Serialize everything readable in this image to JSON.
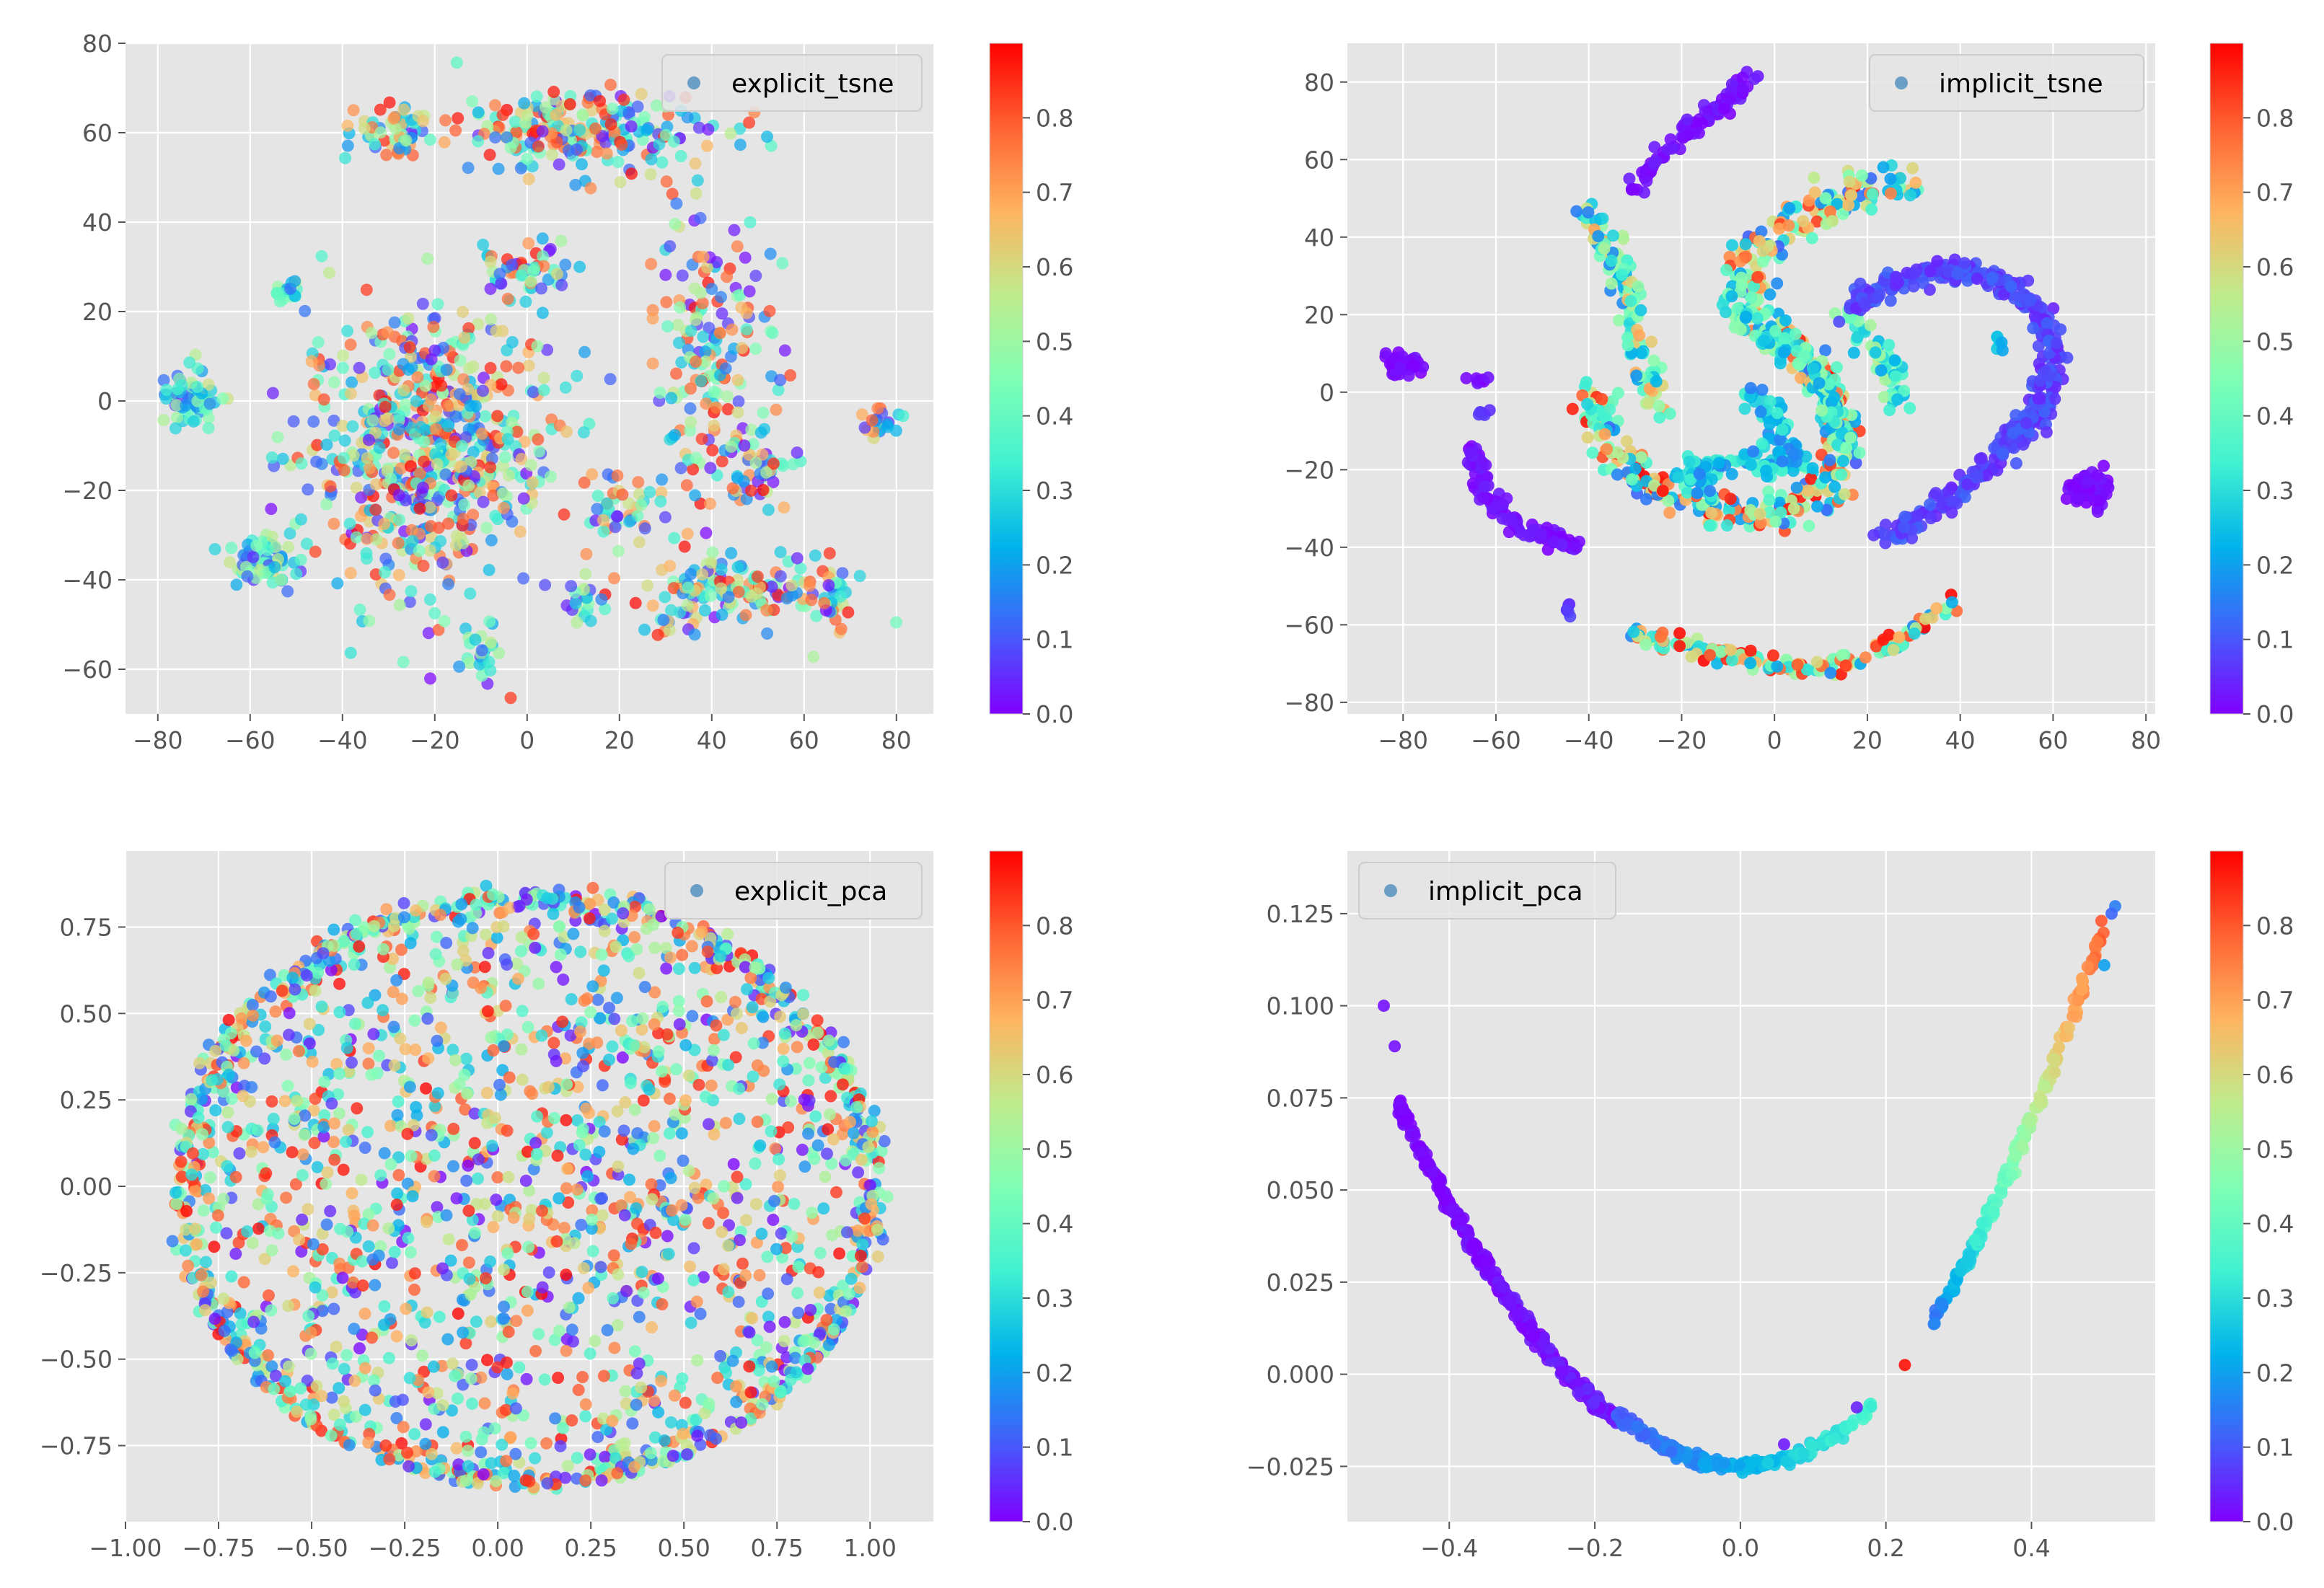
{
  "figure": {
    "colormap": "rainbow",
    "colormap_stops": [
      "#8000ff",
      "#4062fa",
      "#01b3eb",
      "#41f2d0",
      "#80ffb4",
      "#c0eb8c",
      "#ffb360",
      "#ff6232",
      "#ff0000"
    ],
    "axes_facecolor": "#e5e5e5",
    "grid_color": "#ffffff",
    "legend_marker_color": "#6a9ec4"
  },
  "chart_data": [
    {
      "id": "explicit_tsne",
      "type": "scatter",
      "title": "",
      "legend": {
        "label": "explicit_tsne",
        "position": "upper right"
      },
      "xlim": [
        -87,
        88
      ],
      "ylim": [
        -70,
        80
      ],
      "xticks": [
        -80,
        -60,
        -40,
        -20,
        0,
        20,
        40,
        60,
        80
      ],
      "xtick_labels": [
        "−80",
        "−60",
        "−40",
        "−20",
        "0",
        "20",
        "40",
        "60",
        "80"
      ],
      "yticks": [
        -60,
        -40,
        -20,
        0,
        20,
        40,
        60,
        80
      ],
      "ytick_labels": [
        "−60",
        "−40",
        "−20",
        "0",
        "20",
        "40",
        "60",
        "80"
      ],
      "colorbar": {
        "range": [
          0,
          0.9
        ],
        "ticks": [
          0.0,
          0.1,
          0.2,
          0.3,
          0.4,
          0.5,
          0.6,
          0.7,
          0.8
        ],
        "tick_labels": [
          "0.0",
          "0.1",
          "0.2",
          "0.3",
          "0.4",
          "0.5",
          "0.6",
          "0.7",
          "0.8"
        ]
      },
      "point_size": 0.77,
      "point_alpha": 0.72,
      "clusters": [
        {
          "cx": -73,
          "cy": 0,
          "rx": 6,
          "ry": 6,
          "n": 70,
          "cmin": 0.05,
          "cmax": 0.6
        },
        {
          "cx": -57,
          "cy": -36,
          "rx": 6,
          "ry": 6,
          "n": 70,
          "cmin": 0.05,
          "cmax": 0.6
        },
        {
          "cx": -52,
          "cy": 25,
          "rx": 3,
          "ry": 3,
          "n": 18,
          "cmin": 0.05,
          "cmax": 0.6
        },
        {
          "cx": 76,
          "cy": -5,
          "rx": 4,
          "ry": 3,
          "n": 24,
          "cmin": 0.05,
          "cmax": 0.85
        },
        {
          "cx": -22,
          "cy": -10,
          "rx": 25,
          "ry": 28,
          "n": 650,
          "cmin": 0,
          "cmax": 0.9
        },
        {
          "cx": 12,
          "cy": 60,
          "rx": 25,
          "ry": 8,
          "n": 220,
          "cmin": 0,
          "cmax": 0.9
        },
        {
          "cx": -30,
          "cy": 60,
          "rx": 8,
          "ry": 6,
          "n": 55,
          "cmin": 0,
          "cmax": 0.9
        },
        {
          "cx": 40,
          "cy": 10,
          "rx": 12,
          "ry": 30,
          "n": 180,
          "cmin": 0,
          "cmax": 0.9
        },
        {
          "cx": 45,
          "cy": -42,
          "rx": 20,
          "ry": 6,
          "n": 130,
          "cmin": 0,
          "cmax": 0.9
        },
        {
          "cx": 0,
          "cy": 30,
          "rx": 10,
          "ry": 6,
          "n": 50,
          "cmin": 0,
          "cmax": 0.9
        },
        {
          "cx": -10,
          "cy": -57,
          "rx": 3,
          "ry": 5,
          "n": 25,
          "cmin": 0,
          "cmax": 0.6
        },
        {
          "cx": 12,
          "cy": -45,
          "rx": 4,
          "ry": 5,
          "n": 20,
          "cmin": 0,
          "cmax": 0.6
        },
        {
          "cx": 50,
          "cy": -15,
          "rx": 8,
          "ry": 8,
          "n": 50,
          "cmin": 0,
          "cmax": 0.9
        },
        {
          "cx": 67,
          "cy": -45,
          "rx": 4,
          "ry": 8,
          "n": 30,
          "cmin": 0,
          "cmax": 0.9
        },
        {
          "cx": 20,
          "cy": -25,
          "rx": 8,
          "ry": 8,
          "n": 40,
          "cmin": 0,
          "cmax": 0.9
        },
        {
          "cx": 30,
          "cy": -50,
          "rx": 4,
          "ry": 3,
          "n": 10,
          "cmin": 0,
          "cmax": 0.9
        }
      ]
    },
    {
      "id": "implicit_tsne",
      "type": "scatter",
      "title": "",
      "legend": {
        "label": "implicit_tsne",
        "position": "upper right"
      },
      "xlim": [
        -92,
        82
      ],
      "ylim": [
        -83,
        90
      ],
      "xticks": [
        -80,
        -60,
        -40,
        -20,
        0,
        20,
        40,
        60,
        80
      ],
      "xtick_labels": [
        "−80",
        "−60",
        "−40",
        "−20",
        "0",
        "20",
        "40",
        "60",
        "80"
      ],
      "yticks": [
        -80,
        -60,
        -40,
        -20,
        0,
        20,
        40,
        60,
        80
      ],
      "ytick_labels": [
        "−80",
        "−60",
        "−40",
        "−20",
        "0",
        "20",
        "40",
        "60",
        "80"
      ],
      "colorbar": {
        "range": [
          0,
          0.9
        ],
        "ticks": [
          0.0,
          0.1,
          0.2,
          0.3,
          0.4,
          0.5,
          0.6,
          0.7,
          0.8
        ],
        "tick_labels": [
          "0.0",
          "0.1",
          "0.2",
          "0.3",
          "0.4",
          "0.5",
          "0.6",
          "0.7",
          "0.8"
        ]
      },
      "point_size": 0.77,
      "point_alpha": 0.9,
      "polylines": [
        {
          "pts": [
            [
              -30,
              52
            ],
            [
              -24,
              62
            ],
            [
              -14,
              72
            ],
            [
              -4,
              82
            ]
          ],
          "n": 90,
          "spread": 2.2,
          "cmin": 0,
          "cmax": 0.04
        },
        {
          "pts": [
            [
              -65,
              -15
            ],
            [
              -62,
              -27
            ],
            [
              -55,
              -35
            ],
            [
              -42,
              -40
            ]
          ],
          "n": 110,
          "spread": 2,
          "cmin": 0,
          "cmax": 0.04
        },
        {
          "pts": [
            [
              -30,
              -63
            ],
            [
              -10,
              -68
            ],
            [
              10,
              -72
            ],
            [
              25,
              -65
            ],
            [
              38,
              -55
            ]
          ],
          "n": 160,
          "spread": 2.5,
          "cmin": 0.15,
          "cmax": 0.9
        },
        {
          "pts": [
            [
              -42,
              48
            ],
            [
              -36,
              40
            ],
            [
              -32,
              25
            ],
            [
              -28,
              5
            ],
            [
              -24,
              -5
            ]
          ],
          "n": 110,
          "spread": 3,
          "cmin": 0.15,
          "cmax": 0.7
        },
        {
          "pts": [
            [
              -40,
              0
            ],
            [
              -35,
              -15
            ],
            [
              -25,
              -25
            ],
            [
              -12,
              -30
            ],
            [
              0,
              -32
            ],
            [
              12,
              -25
            ],
            [
              15,
              -10
            ],
            [
              12,
              0
            ],
            [
              5,
              10
            ],
            [
              -5,
              20
            ],
            [
              -5,
              35
            ],
            [
              5,
              45
            ],
            [
              15,
              50
            ],
            [
              30,
              55
            ]
          ],
          "n": 480,
          "spread": 4.5,
          "cmin": 0.1,
          "cmax": 0.9
        },
        {
          "pts": [
            [
              -5,
              0
            ],
            [
              0,
              -10
            ],
            [
              5,
              -20
            ],
            [
              -10,
              -18
            ],
            [
              -20,
              -20
            ],
            [
              -15,
              -25
            ]
          ],
          "n": 140,
          "spread": 3.5,
          "cmin": 0.15,
          "cmax": 0.35
        },
        {
          "pts": [
            [
              -8,
              30
            ],
            [
              -8,
              22
            ],
            [
              0,
              15
            ],
            [
              10,
              5
            ],
            [
              15,
              -15
            ]
          ],
          "n": 110,
          "spread": 3.5,
          "cmin": 0.2,
          "cmax": 0.5
        },
        {
          "pts": [
            [
              15,
              20
            ],
            [
              20,
              15
            ],
            [
              25,
              5
            ],
            [
              27,
              -5
            ]
          ],
          "n": 60,
          "spread": 2.5,
          "cmin": 0.2,
          "cmax": 0.55
        },
        {
          "pts": [
            [
              17,
              22
            ],
            [
              25,
              28
            ],
            [
              35,
              32
            ],
            [
              48,
              30
            ],
            [
              56,
              22
            ],
            [
              60,
              10
            ],
            [
              57,
              -5
            ],
            [
              50,
              -15
            ],
            [
              38,
              -28
            ],
            [
              24,
              -38
            ]
          ],
          "n": 420,
          "spread": 2.8,
          "cmin": 0.04,
          "cmax": 0.12
        }
      ],
      "clusters": [
        {
          "cx": -80,
          "cy": 7,
          "rx": 4,
          "ry": 3,
          "n": 40,
          "cmin": 0,
          "cmax": 0.03
        },
        {
          "cx": 68,
          "cy": -25,
          "rx": 4,
          "ry": 4,
          "n": 60,
          "cmin": 0,
          "cmax": 0.03
        },
        {
          "cx": -64,
          "cy": 3,
          "rx": 2,
          "ry": 1.2,
          "n": 8,
          "cmin": 0,
          "cmax": 0.03
        },
        {
          "cx": -63,
          "cy": -5,
          "rx": 1.5,
          "ry": 1.2,
          "n": 6,
          "cmin": 0.05,
          "cmax": 0.08
        },
        {
          "cx": -45,
          "cy": -56,
          "rx": 1.2,
          "ry": 1.2,
          "n": 6,
          "cmin": 0.05,
          "cmax": 0.08
        },
        {
          "cx": 48,
          "cy": 12,
          "rx": 1.5,
          "ry": 2,
          "n": 6,
          "cmin": 0.2,
          "cmax": 0.3
        }
      ]
    },
    {
      "id": "explicit_pca",
      "type": "scatter",
      "title": "",
      "legend": {
        "label": "explicit_pca",
        "position": "upper right"
      },
      "xlim": [
        -1.0,
        1.17
      ],
      "ylim": [
        -0.97,
        0.97
      ],
      "xticks": [
        -1.0,
        -0.75,
        -0.5,
        -0.25,
        0.0,
        0.25,
        0.5,
        0.75,
        1.0
      ],
      "xtick_labels": [
        "−1.00",
        "−0.75",
        "−0.50",
        "−0.25",
        "0.00",
        "0.25",
        "0.50",
        "0.75",
        "1.00"
      ],
      "yticks": [
        -0.75,
        -0.5,
        -0.25,
        0.0,
        0.25,
        0.5,
        0.75
      ],
      "ytick_labels": [
        "−0.75",
        "−0.50",
        "−0.25",
        "0.00",
        "0.25",
        "0.50",
        "0.75"
      ],
      "colorbar": {
        "range": [
          0,
          0.9
        ],
        "ticks": [
          0.0,
          0.1,
          0.2,
          0.3,
          0.4,
          0.5,
          0.6,
          0.7,
          0.8
        ],
        "tick_labels": [
          "0.0",
          "0.1",
          "0.2",
          "0.3",
          "0.4",
          "0.5",
          "0.6",
          "0.7",
          "0.8"
        ]
      },
      "point_size": 0.77,
      "point_alpha": 0.78,
      "disks": [
        {
          "cx": 0.08,
          "cy": 0.0,
          "rx": 0.97,
          "ry": 0.88,
          "n": 1550,
          "cmin": 0,
          "cmax": 0.9
        }
      ],
      "rings": [
        {
          "cx": 0.08,
          "cy": -0.01,
          "rx": 0.95,
          "ry": 0.86,
          "n": 600,
          "spread": 0.04,
          "cmin": 0,
          "cmax": 0.9
        }
      ]
    },
    {
      "id": "implicit_pca",
      "type": "scatter",
      "title": "",
      "legend": {
        "label": "implicit_pca",
        "position": "upper left"
      },
      "xlim": [
        -0.54,
        0.57
      ],
      "ylim": [
        -0.04,
        0.142
      ],
      "xticks": [
        -0.4,
        -0.2,
        0.0,
        0.2,
        0.4
      ],
      "xtick_labels": [
        "−0.4",
        "−0.2",
        "0.0",
        "0.2",
        "0.4"
      ],
      "yticks": [
        -0.025,
        0.0,
        0.025,
        0.05,
        0.075,
        0.1,
        0.125
      ],
      "ytick_labels": [
        "−0.025",
        "0.000",
        "0.025",
        "0.050",
        "0.075",
        "0.100",
        "0.125"
      ],
      "colorbar": {
        "range": [
          0,
          0.9
        ],
        "ticks": [
          0.0,
          0.1,
          0.2,
          0.3,
          0.4,
          0.5,
          0.6,
          0.7,
          0.8
        ],
        "tick_labels": [
          "0.0",
          "0.1",
          "0.2",
          "0.3",
          "0.4",
          "0.5",
          "0.6",
          "0.7",
          "0.8"
        ]
      },
      "point_size": 0.77,
      "point_alpha": 0.9,
      "parabolic_curves": [
        {
          "xmin": -0.47,
          "xmax": -0.17,
          "a": 0.445,
          "c": -0.025,
          "n": 360,
          "cmin": 0,
          "cmax": 0.03,
          "jitter": 0.0012
        },
        {
          "xmin": -0.17,
          "xmax": 0.18,
          "a": 0.5,
          "c": -0.025,
          "n": 220,
          "cmin": 0.1,
          "cmax": 0.35,
          "jitter": 0.0008
        },
        {
          "xmin": 0.265,
          "xmax": 0.5,
          "a": 0.595,
          "c": -0.0264,
          "n": 200,
          "cmin": 0.15,
          "cmax": 0.8,
          "jitter": 0.0015
        }
      ],
      "points": [
        {
          "x": -0.49,
          "y": 0.1,
          "c": 0.02
        },
        {
          "x": -0.475,
          "y": 0.089,
          "c": 0.02
        },
        {
          "x": 0.226,
          "y": 0.0025,
          "c": 0.88
        },
        {
          "x": 0.06,
          "y": -0.019,
          "c": 0.03
        },
        {
          "x": 0.16,
          "y": -0.009,
          "c": 0.04
        },
        {
          "x": 0.515,
          "y": 0.127,
          "c": 0.15
        },
        {
          "x": 0.51,
          "y": 0.125,
          "c": 0.12
        },
        {
          "x": 0.5,
          "y": 0.111,
          "c": 0.2
        }
      ]
    }
  ]
}
